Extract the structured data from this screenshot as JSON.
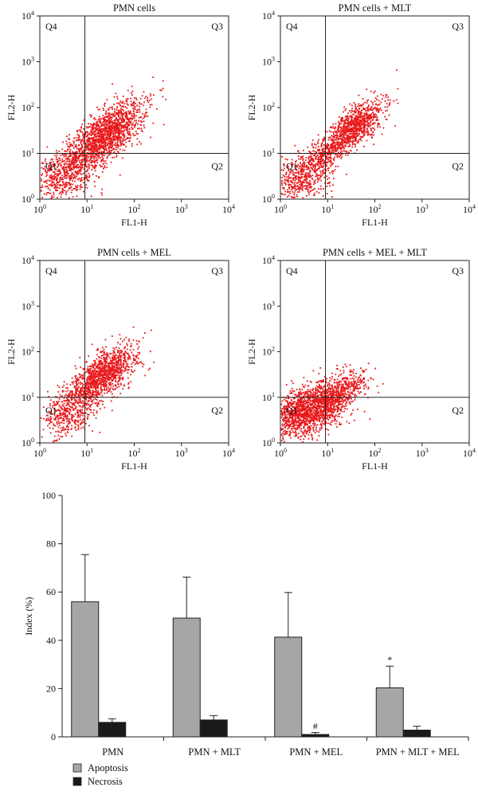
{
  "chart_data": [
    {
      "type": "scatter",
      "title": "PMN cells",
      "xlabel": "FL1-H",
      "ylabel": "FL2-H",
      "x_scale": "log",
      "y_scale": "log",
      "xlim": [
        1,
        10000
      ],
      "ylim": [
        1,
        10000
      ],
      "x_ticks": [
        "10",
        "10",
        "10",
        "10",
        "10"
      ],
      "x_tick_exponents": [
        "0",
        "1",
        "2",
        "3",
        "4"
      ],
      "y_ticks": [
        "10",
        "10",
        "10",
        "10",
        "10"
      ],
      "y_tick_exponents": [
        "0",
        "1",
        "2",
        "3",
        "4"
      ],
      "quadrant_gate": {
        "x": 9,
        "y": 10
      },
      "quadrant_labels": [
        "Q1",
        "Q2",
        "Q3",
        "Q4"
      ],
      "point_color": "#e8191c"
    },
    {
      "type": "scatter",
      "title": "PMN cells + MLT",
      "xlabel": "FL1-H",
      "ylabel": "FL2-H",
      "x_scale": "log",
      "y_scale": "log",
      "xlim": [
        1,
        10000
      ],
      "ylim": [
        1,
        10000
      ],
      "x_ticks": [
        "10",
        "10",
        "10",
        "10",
        "10"
      ],
      "x_tick_exponents": [
        "0",
        "1",
        "2",
        "3",
        "4"
      ],
      "y_ticks": [
        "10",
        "10",
        "10",
        "10",
        "10"
      ],
      "y_tick_exponents": [
        "0",
        "1",
        "2",
        "3",
        "4"
      ],
      "quadrant_gate": {
        "x": 9,
        "y": 10
      },
      "quadrant_labels": [
        "Q1",
        "Q2",
        "Q3",
        "Q4"
      ],
      "point_color": "#e8191c"
    },
    {
      "type": "scatter",
      "title": "PMN cells + MEL",
      "xlabel": "FL1-H",
      "ylabel": "FL2-H",
      "x_scale": "log",
      "y_scale": "log",
      "xlim": [
        1,
        10000
      ],
      "ylim": [
        1,
        10000
      ],
      "x_ticks": [
        "10",
        "10",
        "10",
        "10",
        "10"
      ],
      "x_tick_exponents": [
        "0",
        "1",
        "2",
        "3",
        "4"
      ],
      "y_ticks": [
        "10",
        "10",
        "10",
        "10",
        "10"
      ],
      "y_tick_exponents": [
        "0",
        "1",
        "2",
        "3",
        "4"
      ],
      "quadrant_gate": {
        "x": 9,
        "y": 10
      },
      "quadrant_labels": [
        "Q1",
        "Q2",
        "Q3",
        "Q4"
      ],
      "point_color": "#e8191c"
    },
    {
      "type": "scatter",
      "title": "PMN cells + MEL + MLT",
      "xlabel": "FL1-H",
      "ylabel": "FL2-H",
      "x_scale": "log",
      "y_scale": "log",
      "xlim": [
        1,
        10000
      ],
      "ylim": [
        1,
        10000
      ],
      "x_ticks": [
        "10",
        "10",
        "10",
        "10",
        "10"
      ],
      "x_tick_exponents": [
        "0",
        "1",
        "2",
        "3",
        "4"
      ],
      "y_ticks": [
        "10",
        "10",
        "10",
        "10",
        "10"
      ],
      "y_tick_exponents": [
        "0",
        "1",
        "2",
        "3",
        "4"
      ],
      "quadrant_gate": {
        "x": 9,
        "y": 10
      },
      "quadrant_labels": [
        "Q1",
        "Q2",
        "Q3",
        "Q4"
      ],
      "point_color": "#e8191c"
    },
    {
      "type": "bar",
      "categories": [
        "PMN",
        "PMN + MLT",
        "PMN + MEL",
        "PMN + MLT + MEL"
      ],
      "series": [
        {
          "name": "Apoptosis",
          "values": [
            56,
            49.2,
            41.3,
            20.3
          ],
          "errors": [
            19.5,
            17,
            18.5,
            9
          ],
          "color": "#a6a6a6"
        },
        {
          "name": "Necrosis",
          "values": [
            6,
            7,
            1,
            2.8
          ],
          "errors": [
            1.5,
            1.8,
            0.8,
            1.6
          ],
          "color": "#1a1a1a"
        }
      ],
      "annotations": [
        {
          "text": "*",
          "category": "PMN + MLT + MEL",
          "series": "Apoptosis"
        },
        {
          "text": "#",
          "category": "PMN + MEL",
          "series": "Necrosis"
        }
      ],
      "ylabel": "Index (%)",
      "ylim": [
        0,
        100
      ],
      "y_ticks": [
        "0",
        "20",
        "40",
        "60",
        "80",
        "100"
      ],
      "legend_position": "bottom-left"
    }
  ]
}
